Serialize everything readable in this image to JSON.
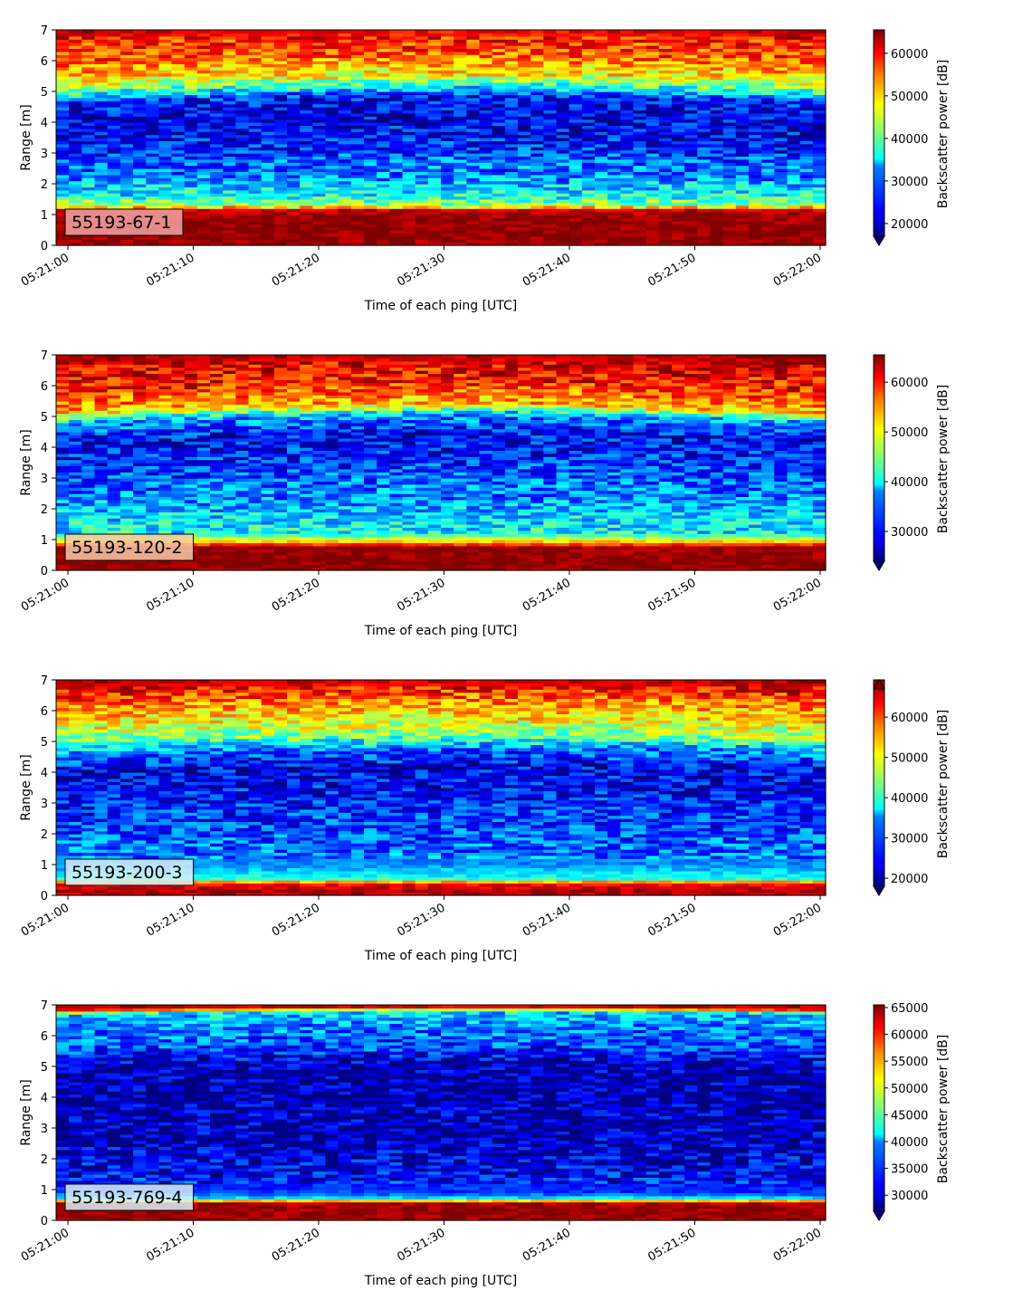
{
  "chart_data": [
    {
      "type": "heatmap",
      "label": "55193-67-1",
      "xlabel": "Time of each ping [UTC]",
      "ylabel": "Range [m]",
      "x_ticks": [
        "05:21:00",
        "05:21:10",
        "05:21:20",
        "05:21:30",
        "05:21:40",
        "05:21:50",
        "05:22:00"
      ],
      "y_ticks": [
        "0",
        "1",
        "2",
        "3",
        "4",
        "5",
        "6",
        "7"
      ],
      "ylim": [
        0,
        7
      ],
      "colorbar": {
        "label": "Backscatter power [dB]",
        "min": 17000,
        "max": 65500,
        "ticks": [
          "20000",
          "30000",
          "40000",
          "50000",
          "60000"
        ],
        "extend": "min"
      },
      "badge_color": "#f2a3a3",
      "profile": [
        {
          "range": 0.0,
          "value": 64000
        },
        {
          "range": 0.3,
          "value": 65000
        },
        {
          "range": 0.9,
          "value": 64500
        },
        {
          "range": 1.15,
          "value": 62000
        },
        {
          "range": 1.3,
          "value": 43000
        },
        {
          "range": 1.6,
          "value": 36000
        },
        {
          "range": 2.2,
          "value": 30000
        },
        {
          "range": 3.0,
          "value": 24500
        },
        {
          "range": 4.0,
          "value": 21500
        },
        {
          "range": 4.6,
          "value": 24000
        },
        {
          "range": 5.0,
          "value": 38000
        },
        {
          "range": 5.3,
          "value": 47000
        },
        {
          "range": 6.0,
          "value": 55000
        },
        {
          "range": 6.7,
          "value": 59000
        },
        {
          "range": 7.0,
          "value": 65000
        }
      ],
      "drift_m": 0.25
    },
    {
      "type": "heatmap",
      "label": "55193-120-2",
      "xlabel": "Time of each ping [UTC]",
      "ylabel": "Range [m]",
      "x_ticks": [
        "05:21:00",
        "05:21:10",
        "05:21:20",
        "05:21:30",
        "05:21:40",
        "05:21:50",
        "05:22:00"
      ],
      "y_ticks": [
        "0",
        "1",
        "2",
        "3",
        "4",
        "5",
        "6",
        "7"
      ],
      "ylim": [
        0,
        7
      ],
      "colorbar": {
        "label": "Backscatter power [dB]",
        "min": 24000,
        "max": 65500,
        "ticks": [
          "30000",
          "40000",
          "50000",
          "60000"
        ],
        "extend": "min"
      },
      "badge_color": "#f6c9a6",
      "profile": [
        {
          "range": 0.0,
          "value": 65000
        },
        {
          "range": 0.2,
          "value": 65500
        },
        {
          "range": 0.75,
          "value": 64500
        },
        {
          "range": 0.95,
          "value": 52000
        },
        {
          "range": 1.2,
          "value": 40000
        },
        {
          "range": 1.8,
          "value": 38000
        },
        {
          "range": 2.5,
          "value": 34000
        },
        {
          "range": 3.3,
          "value": 31000
        },
        {
          "range": 4.2,
          "value": 29000
        },
        {
          "range": 4.8,
          "value": 36000
        },
        {
          "range": 5.1,
          "value": 52000
        },
        {
          "range": 5.8,
          "value": 59000
        },
        {
          "range": 6.6,
          "value": 62000
        },
        {
          "range": 7.0,
          "value": 65000
        }
      ],
      "drift_m": 0.3
    },
    {
      "type": "heatmap",
      "label": "55193-200-3",
      "xlabel": "Time of each ping [UTC]",
      "ylabel": "Range [m]",
      "x_ticks": [
        "05:21:00",
        "05:21:10",
        "05:21:20",
        "05:21:30",
        "05:21:40",
        "05:21:50",
        "05:22:00"
      ],
      "y_ticks": [
        "0",
        "1",
        "2",
        "3",
        "4",
        "5",
        "6",
        "7"
      ],
      "ylim": [
        0,
        7
      ],
      "colorbar": {
        "label": "Backscatter power [dB]",
        "min": 18000,
        "max": 67000,
        "ticks": [
          "20000",
          "30000",
          "40000",
          "50000",
          "60000"
        ],
        "extend": "both"
      },
      "badge_color": "#d8eef7",
      "profile": [
        {
          "range": 0.0,
          "value": 64000
        },
        {
          "range": 0.15,
          "value": 65000
        },
        {
          "range": 0.4,
          "value": 60000
        },
        {
          "range": 0.55,
          "value": 38000
        },
        {
          "range": 1.0,
          "value": 31000
        },
        {
          "range": 2.0,
          "value": 28000
        },
        {
          "range": 3.0,
          "value": 25000
        },
        {
          "range": 4.0,
          "value": 23000
        },
        {
          "range": 4.6,
          "value": 30000
        },
        {
          "range": 5.0,
          "value": 42000
        },
        {
          "range": 5.5,
          "value": 48000
        },
        {
          "range": 6.2,
          "value": 55000
        },
        {
          "range": 6.7,
          "value": 62000
        },
        {
          "range": 7.0,
          "value": 66000
        }
      ],
      "drift_m": 0.2
    },
    {
      "type": "heatmap",
      "label": "55193-769-4",
      "xlabel": "Time of each ping [UTC]",
      "ylabel": "Range [m]",
      "x_ticks": [
        "05:21:00",
        "05:21:10",
        "05:21:20",
        "05:21:30",
        "05:21:40",
        "05:21:50",
        "05:22:00"
      ],
      "y_ticks": [
        "0",
        "1",
        "2",
        "3",
        "4",
        "5",
        "6",
        "7"
      ],
      "ylim": [
        0,
        7
      ],
      "colorbar": {
        "label": "Backscatter power [dB]",
        "min": 27000,
        "max": 65500,
        "ticks": [
          "30000",
          "35000",
          "40000",
          "45000",
          "50000",
          "55000",
          "60000",
          "65000"
        ],
        "extend": "min"
      },
      "badge_color": "#d8eef7",
      "profile": [
        {
          "range": 0.0,
          "value": 64000
        },
        {
          "range": 0.2,
          "value": 65000
        },
        {
          "range": 0.6,
          "value": 64000
        },
        {
          "range": 0.7,
          "value": 42000
        },
        {
          "range": 0.9,
          "value": 34000
        },
        {
          "range": 1.5,
          "value": 31500
        },
        {
          "range": 2.5,
          "value": 29500
        },
        {
          "range": 4.0,
          "value": 28500
        },
        {
          "range": 5.0,
          "value": 29000
        },
        {
          "range": 5.5,
          "value": 34000
        },
        {
          "range": 6.2,
          "value": 37000
        },
        {
          "range": 6.7,
          "value": 40000
        },
        {
          "range": 6.85,
          "value": 62000
        },
        {
          "range": 7.0,
          "value": 65000
        }
      ],
      "drift_m": 0.1
    }
  ]
}
